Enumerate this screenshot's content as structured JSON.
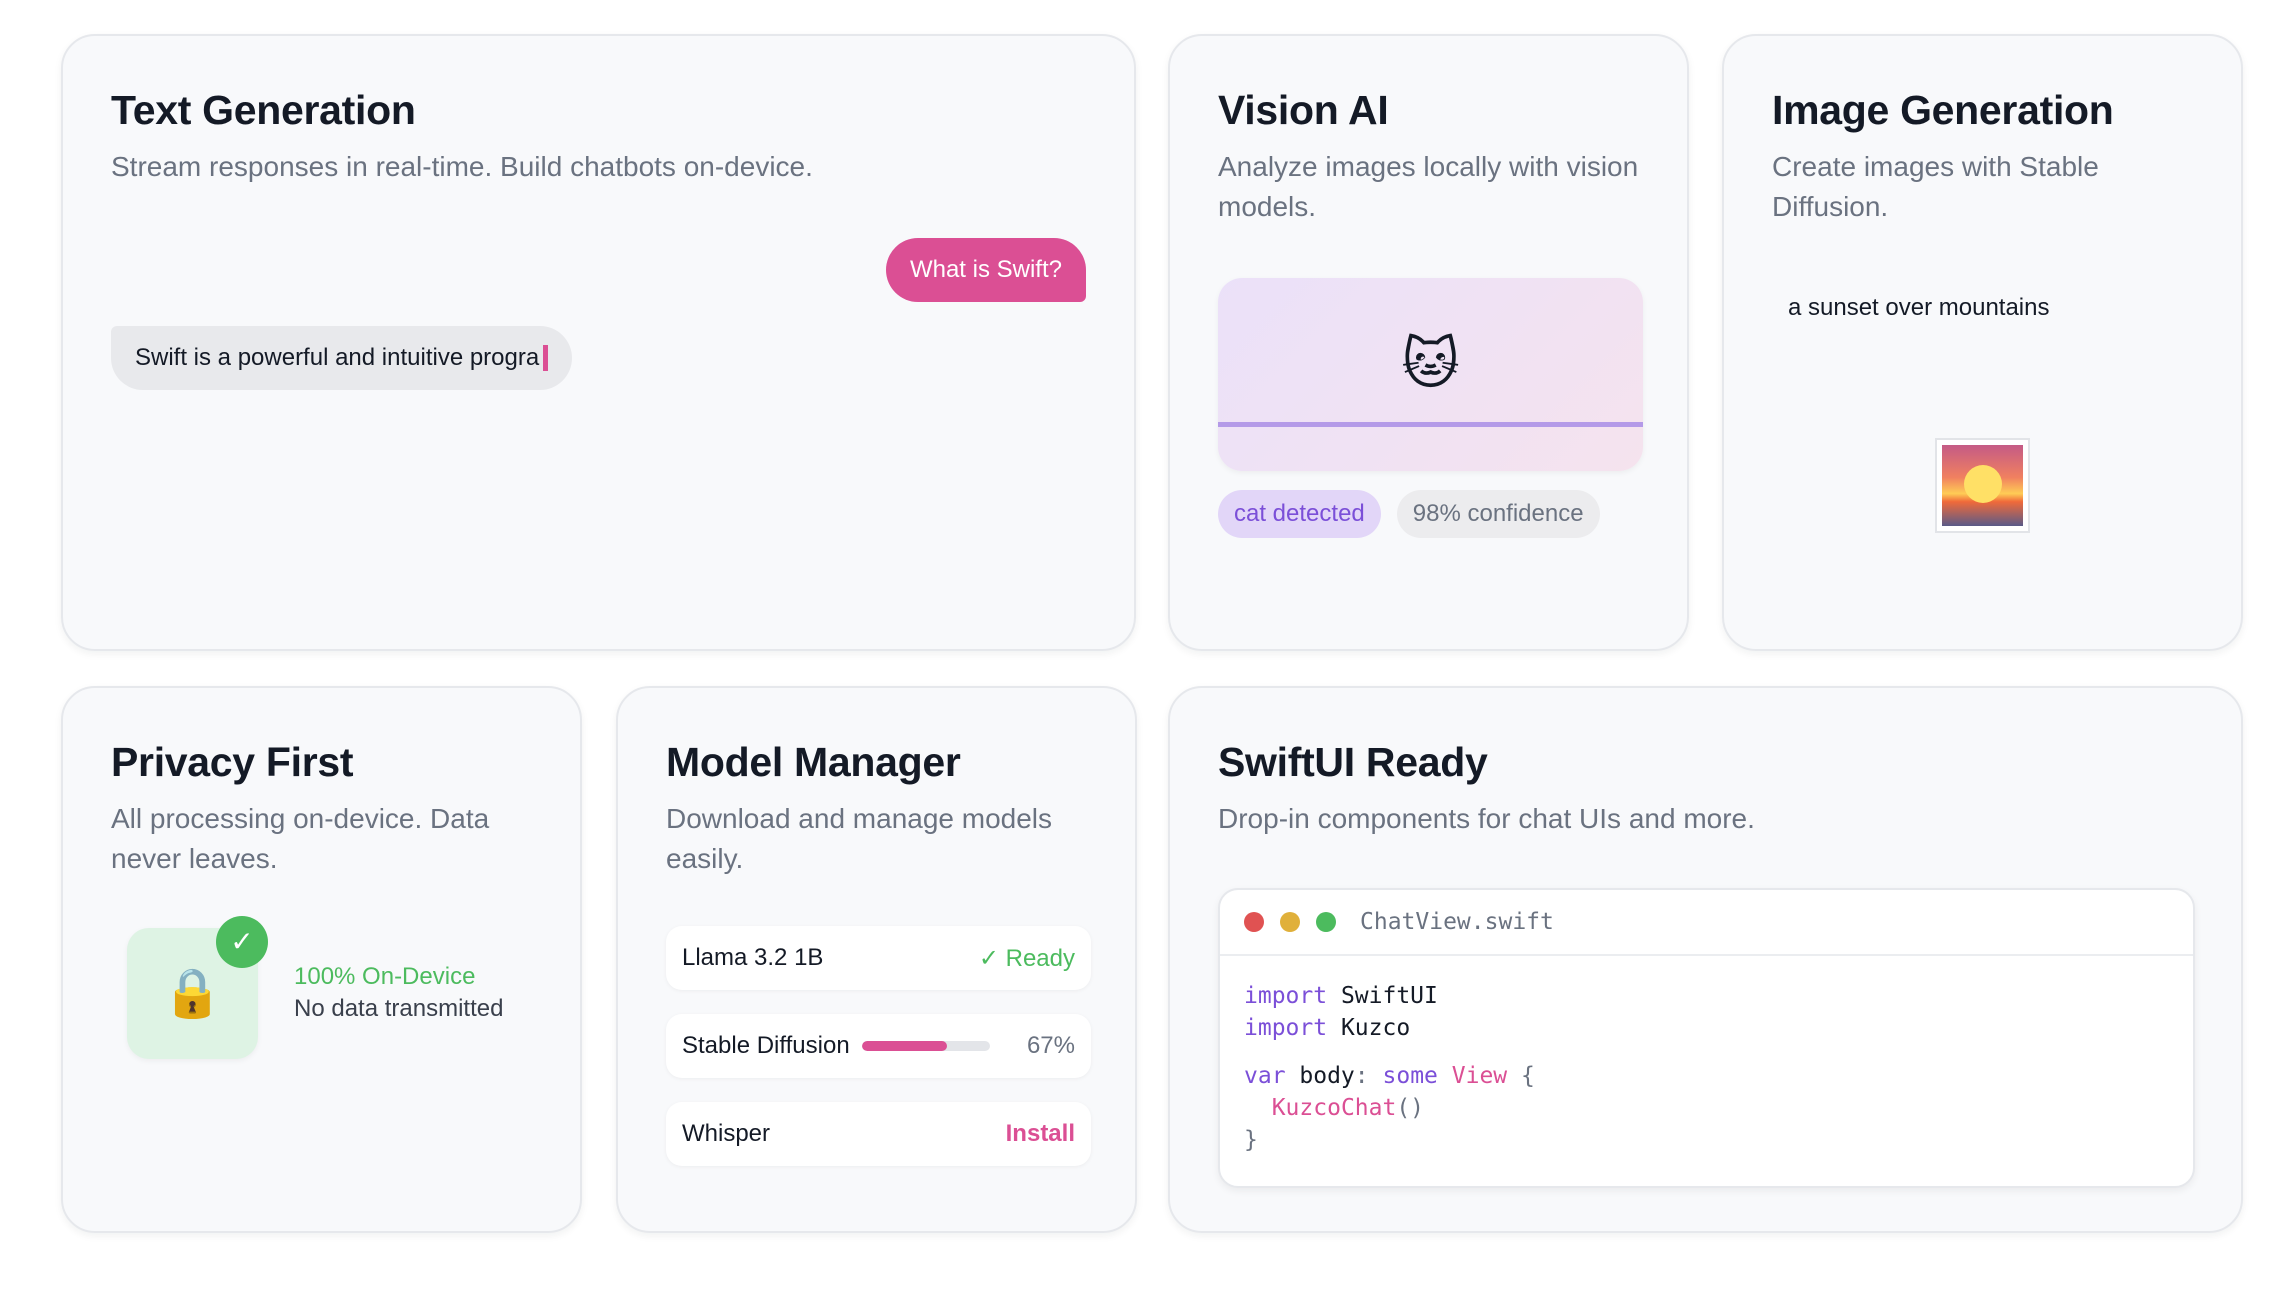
{
  "colors": {
    "accent_pink": "#db4f94",
    "accent_purple": "#7b4fd8",
    "success_green": "#4cbb5e",
    "dot_red": "#e05252",
    "dot_yellow": "#e0b03a",
    "dot_green": "#4cbb5e"
  },
  "text_generation": {
    "title": "Text Generation",
    "description": "Stream responses in real-time. Build chatbots on-device.",
    "user_message": "What is Swift?",
    "ai_message": "Swift is a powerful and intuitive progra"
  },
  "vision_ai": {
    "title": "Vision AI",
    "description": "Analyze images locally with vision models.",
    "emoji": "🐱",
    "detected_label": "cat detected",
    "confidence_label": "98% confidence"
  },
  "image_generation": {
    "title": "Image Generation",
    "description": "Create images with Stable Diffusion.",
    "prompt": "a sunset over mountains",
    "thumbnail_icon": "sunset-image-icon"
  },
  "privacy": {
    "title": "Privacy First",
    "description": "All processing on-device. Data never leaves.",
    "lock_emoji": "🔒",
    "check": "✓",
    "status_title": "100% On-Device",
    "status_sub": "No data transmitted"
  },
  "model_manager": {
    "title": "Model Manager",
    "description": "Download and manage models easily.",
    "models": [
      {
        "name": "Llama 3.2 1B",
        "status": "✓ Ready"
      },
      {
        "name": "Stable Diffusion",
        "progress": 0.67,
        "progress_label": "67%"
      },
      {
        "name": "Whisper",
        "action": "Install"
      }
    ]
  },
  "swiftui": {
    "title": "SwiftUI Ready",
    "description": "Drop-in components for chat UIs and more.",
    "filename": "ChatView.swift",
    "code": {
      "l1_kw": "import",
      "l1_rest": " SwiftUI",
      "l2_kw": "import",
      "l2_rest": " Kuzco",
      "l3_kw": "var",
      "l3_name": " body",
      "l3_colon": ":",
      "l3_some": " some",
      "l3_type": " View",
      "l3_brace": " {",
      "l4_fn": "KuzcoChat",
      "l4_parens": "()",
      "l5": "}"
    }
  }
}
